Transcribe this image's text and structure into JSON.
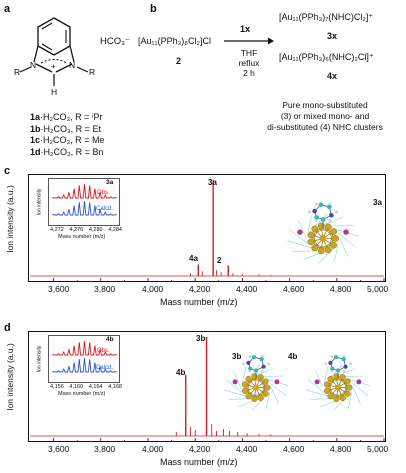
{
  "panel_a": {
    "label": "a",
    "anion": "HCO₃⁻",
    "r_left": "R",
    "r_right": "R",
    "n_left": "N",
    "n_right": "N",
    "h_label": "H",
    "plus": "+",
    "compounds": [
      {
        "id": "1a",
        "formula": "·H₂CO₃, R = ",
        "r": "ⁱPr"
      },
      {
        "id": "1b",
        "formula": "·H₂CO₃, R = ",
        "r": "Et"
      },
      {
        "id": "1c",
        "formula": "·H₂CO₃, R = ",
        "r": "Me"
      },
      {
        "id": "1d",
        "formula": "·H₂CO₃, R = ",
        "r": "Bn"
      }
    ]
  },
  "panel_b": {
    "label": "b",
    "reactant": "[Au₁₁(PPh₃)₈Cl₂]Cl",
    "reactant_id": "2",
    "reagent": "1x",
    "conditions": [
      "THF",
      "reflux",
      "2 h"
    ],
    "product_3": "[Au₁₁(PPh₃)₇(NHC)Cl₂]⁺",
    "product_3_id": "3x",
    "product_4": "[Au₁₁(PPh₃)₆(NHC)₂Cl]⁺",
    "product_4_id": "4x",
    "summary": [
      "Pure mono-substituted",
      "(3) or mixed mono- and",
      "di-substituted (4) NHC clusters"
    ]
  },
  "panel_c": {
    "label": "c",
    "ylabel": "Ion intensity (a.u.)",
    "xlabel": "Mass number (m/z)",
    "xticks": [
      "3,600",
      "3,800",
      "4,000",
      "4,200",
      "4,400",
      "4,600",
      "4,800",
      "5,000"
    ],
    "peak_labels": [
      "3a",
      "4a",
      "2"
    ],
    "structure_label": "3a",
    "inset": {
      "tag": "3a",
      "obs": "Obs.",
      "calcd": "Calcd.",
      "ylabel": "Ion intensity",
      "xlabel": "Mass number (m/z)",
      "xticks": [
        "4,272",
        "4,276",
        "4,280",
        "4,284"
      ]
    }
  },
  "panel_d": {
    "label": "d",
    "ylabel": "Ion intensity (a.u.)",
    "xlabel": "Mass number (m/z)",
    "xticks": [
      "3,600",
      "3,800",
      "4,000",
      "4,200",
      "4,400",
      "4,600",
      "4,800",
      "5,000"
    ],
    "peak_labels": [
      "3b",
      "4b"
    ],
    "structure_labels": [
      "3b",
      "4b"
    ],
    "inset": {
      "tag": "4b",
      "obs": "Obs.",
      "calcd": "Calcd.",
      "ylabel": "Ion intensity",
      "xlabel": "Mass number (m/z)",
      "xticks": [
        "4,156",
        "4,160",
        "4,164",
        "4,168"
      ]
    }
  },
  "colors": {
    "obs": "#e8141c",
    "calcd": "#2a52d6",
    "spectrum": "#d81a20",
    "gold": "#c8a623",
    "cyan": "#2fb6b8",
    "magenta": "#b0359c"
  },
  "chart_data": [
    {
      "type": "line",
      "panel": "c",
      "xlabel": "Mass number (m/z)",
      "ylabel": "Ion intensity (a.u.)",
      "xlim": [
        3500,
        5000
      ],
      "peaks": [
        {
          "x": 4276,
          "y": 1.0,
          "label": "3a"
        },
        {
          "x": 4213,
          "y": 0.12,
          "label": "4a"
        },
        {
          "x": 4340,
          "y": 0.11,
          "label": "2"
        }
      ]
    },
    {
      "type": "line",
      "panel": "d",
      "xlabel": "Mass number (m/z)",
      "ylabel": "Ion intensity (a.u.)",
      "xlim": [
        3500,
        5000
      ],
      "peaks": [
        {
          "x": 4248,
          "y": 1.0,
          "label": "3b"
        },
        {
          "x": 4160,
          "y": 0.62,
          "label": "4b"
        }
      ]
    }
  ]
}
